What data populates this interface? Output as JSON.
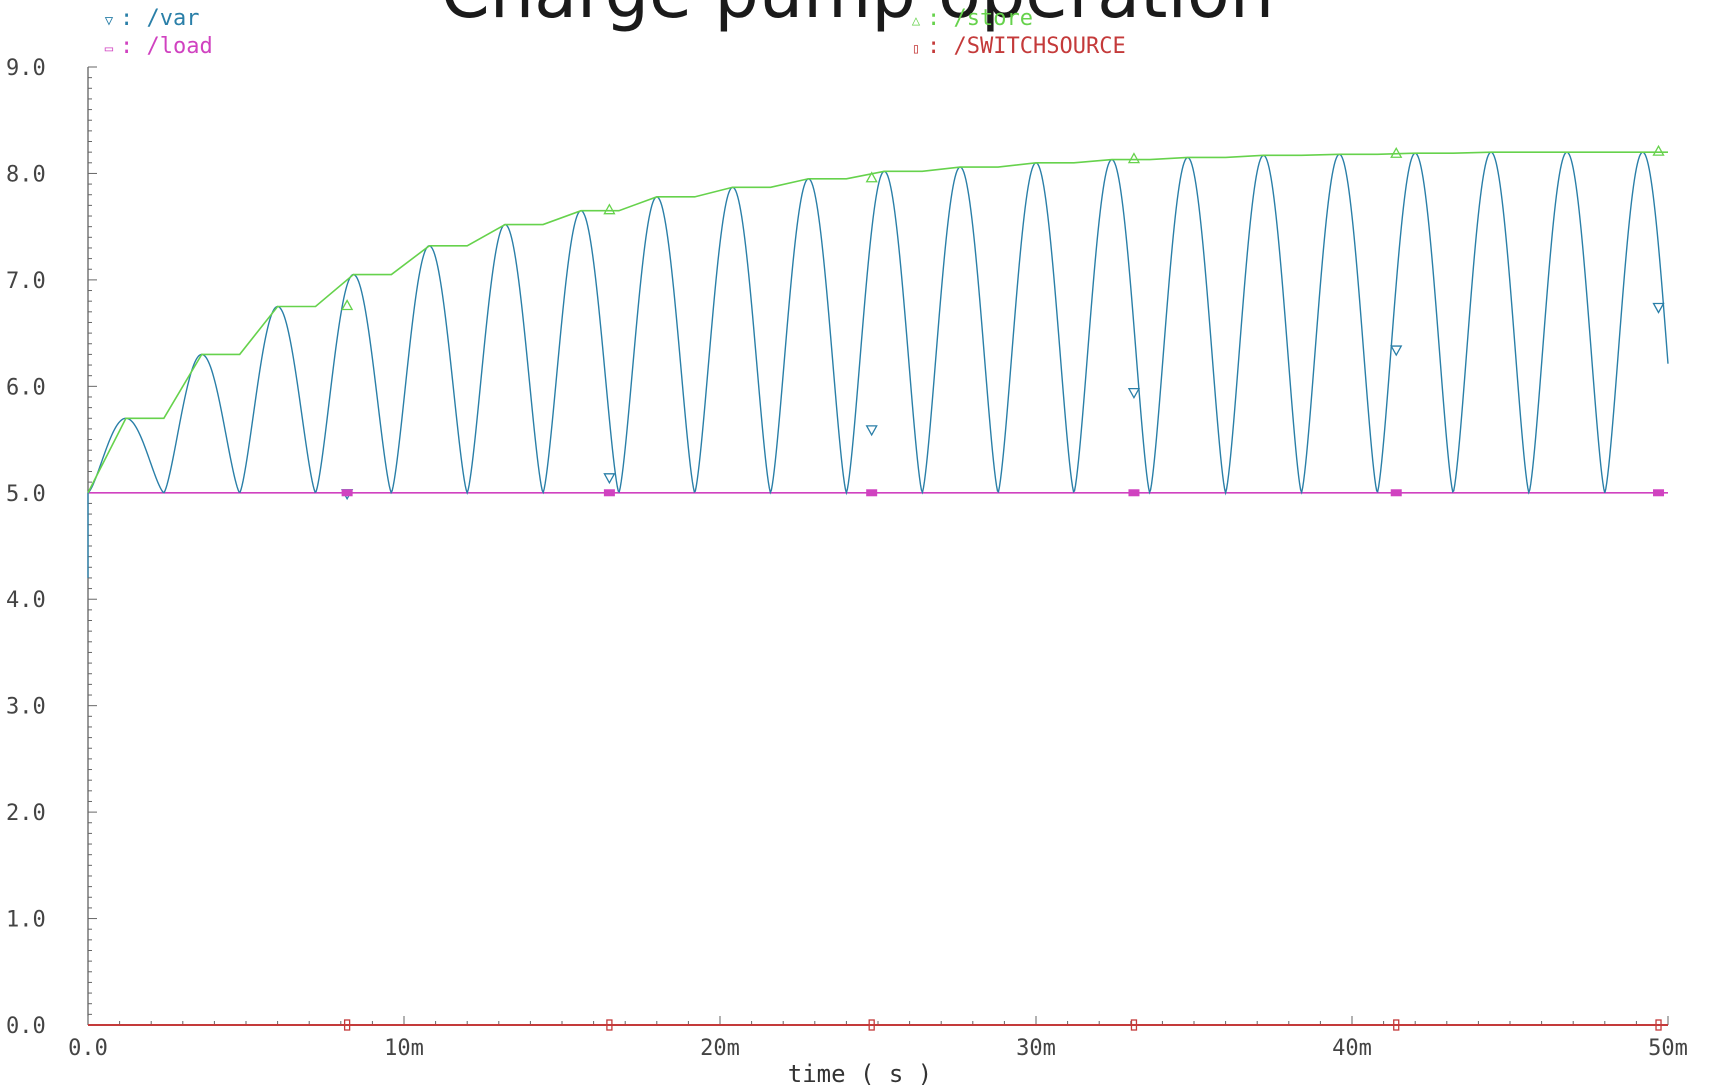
{
  "chart_data": {
    "type": "line",
    "title": "Charge pump operation",
    "xlabel": "time ( s )",
    "ylabel": "",
    "xlim": [
      0,
      0.05
    ],
    "ylim": [
      0,
      9
    ],
    "x_ticks": [
      "0.0",
      "10m",
      "20m",
      "30m",
      "40m",
      "50m"
    ],
    "y_ticks": [
      "0.0",
      "1.0",
      "2.0",
      "3.0",
      "4.0",
      "5.0",
      "6.0",
      "7.0",
      "8.0",
      "9.0"
    ],
    "grid": false,
    "legend_position": "top",
    "series": [
      {
        "name": "/var",
        "color": "#2a7fa8",
        "marker": "▽",
        "description_values": {
          "min": 5.0,
          "period_s": 0.0024,
          "peaks_y": [
            5.7,
            6.3,
            6.75,
            7.05,
            7.32,
            7.52,
            7.65,
            7.78,
            7.87,
            7.95,
            8.02,
            8.06,
            8.1,
            8.13,
            8.15,
            8.17,
            8.18,
            8.19,
            8.2,
            8.2,
            8.2
          ]
        }
      },
      {
        "name": "/store",
        "color": "#66d24c",
        "marker": "△",
        "x": [
          0,
          0.0012,
          0.0024,
          0.0036,
          0.0048,
          0.006,
          0.0072,
          0.0084,
          0.0096,
          0.0108,
          0.012,
          0.0132,
          0.0144,
          0.0156,
          0.0168,
          0.018,
          0.0192,
          0.0204,
          0.0216,
          0.0228,
          0.024,
          0.0252,
          0.0264,
          0.0276,
          0.0288,
          0.03,
          0.0312,
          0.0324,
          0.0336,
          0.0348,
          0.036,
          0.0372,
          0.0384,
          0.0396,
          0.0408,
          0.042,
          0.0432,
          0.0444,
          0.0456,
          0.0468,
          0.048,
          0.05
        ],
        "y": [
          5.0,
          5.7,
          5.7,
          6.3,
          6.3,
          6.75,
          6.75,
          7.05,
          7.05,
          7.32,
          7.32,
          7.52,
          7.52,
          7.65,
          7.65,
          7.78,
          7.78,
          7.87,
          7.87,
          7.95,
          7.95,
          8.02,
          8.02,
          8.06,
          8.06,
          8.1,
          8.1,
          8.13,
          8.13,
          8.15,
          8.15,
          8.17,
          8.17,
          8.18,
          8.18,
          8.19,
          8.19,
          8.2,
          8.2,
          8.2,
          8.2,
          8.2
        ]
      },
      {
        "name": "/load",
        "color": "#d042c0",
        "marker": "▭",
        "x": [
          0,
          0.05
        ],
        "y": [
          5.0,
          5.0
        ]
      },
      {
        "name": "/SWITCHSOURCE",
        "color": "#c43a3a",
        "marker": "▯",
        "x": [
          0,
          0.05
        ],
        "y": [
          0.0,
          0.0
        ]
      }
    ]
  },
  "legend": {
    "var_label": "/var",
    "load_label": "/load",
    "store_label": "/store",
    "switch_label": "/SWITCHSOURCE"
  }
}
